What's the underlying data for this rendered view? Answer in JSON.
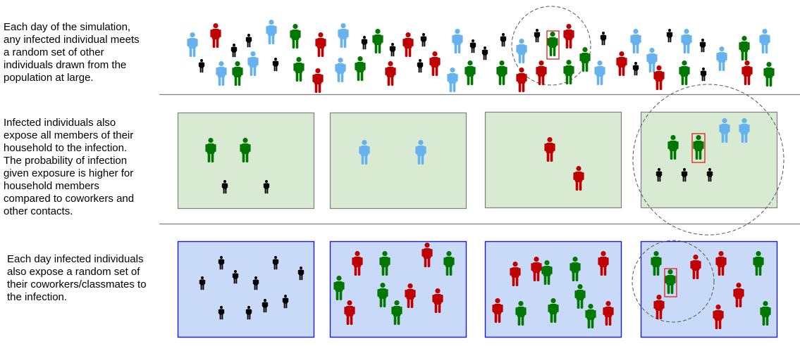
{
  "colors": {
    "infected": "#c00000",
    "recovered": "#007800",
    "susceptible": "#66b2ee",
    "child": "#000000",
    "household_fill": "#d9ead3",
    "household_border": "#7f7f7f",
    "work_fill": "#c9daf8",
    "work_border": "#1a1adc",
    "highlight": "#e01b1b",
    "ring": "#555555",
    "divider": "#7f7f7f"
  },
  "captions": {
    "community": "Each day of the simulation,\nany infected individual meets\na random set of other\nindividuals drawn from the\npopulation at large.",
    "household": "Infected individuals also\nexpose all members of their\nhousehold to the infection.\nThe probability of infection\ngiven exposure is higher for\nhousehold members\ncompared to coworkers and\nother contacts.",
    "workplace": "Each day infected individuals\nalso expose a random set of\ntheir coworkers/classmates to\nthe infection."
  },
  "community": {
    "people": [
      {
        "type": "susceptible"
      },
      {
        "type": "infected"
      },
      {
        "type": "child"
      },
      {
        "type": "child"
      },
      {
        "type": "susceptible"
      },
      {
        "type": "recovered"
      },
      {
        "type": "infected"
      },
      {
        "type": "susceptible"
      },
      {
        "type": "child"
      },
      {
        "type": "recovered"
      },
      {
        "type": "child"
      },
      {
        "type": "infected"
      },
      {
        "type": "child"
      },
      {
        "type": "susceptible"
      },
      {
        "type": "child"
      },
      {
        "type": "child"
      },
      {
        "type": "child"
      },
      {
        "type": "recovered"
      },
      {
        "type": "infected"
      },
      {
        "type": "recovered"
      },
      {
        "type": "child"
      },
      {
        "type": "susceptible"
      },
      {
        "type": "susceptible"
      },
      {
        "type": "child"
      },
      {
        "type": "susceptible"
      },
      {
        "type": "child"
      },
      {
        "type": "susceptible"
      },
      {
        "type": "recovered"
      },
      {
        "type": "susceptible"
      },
      {
        "type": "child"
      },
      {
        "type": "susceptible"
      },
      {
        "type": "recovered"
      },
      {
        "type": "susceptible"
      },
      {
        "type": "child"
      },
      {
        "type": "recovered"
      },
      {
        "type": "infected"
      },
      {
        "type": "susceptible"
      },
      {
        "type": "recovered"
      },
      {
        "type": "infected"
      },
      {
        "type": "child"
      },
      {
        "type": "infected"
      },
      {
        "type": "susceptible"
      },
      {
        "type": "recovered"
      },
      {
        "type": "child"
      },
      {
        "type": "recovered"
      },
      {
        "type": "susceptible"
      },
      {
        "type": "infected"
      },
      {
        "type": "infected"
      },
      {
        "type": "recovered"
      },
      {
        "type": "susceptible"
      },
      {
        "type": "infected"
      },
      {
        "type": "child"
      },
      {
        "type": "infected"
      },
      {
        "type": "recovered"
      }
    ]
  },
  "households": [
    {
      "people": [
        {
          "type": "recovered"
        },
        {
          "type": "recovered"
        },
        {
          "type": "child"
        },
        {
          "type": "child"
        }
      ]
    },
    {
      "people": [
        {
          "type": "susceptible"
        },
        {
          "type": "susceptible"
        }
      ]
    },
    {
      "people": [
        {
          "type": "infected"
        },
        {
          "type": "infected"
        }
      ]
    },
    {
      "people": [
        {
          "type": "susceptible"
        },
        {
          "type": "susceptible"
        },
        {
          "type": "recovered"
        },
        {
          "type": "recovered"
        },
        {
          "type": "child"
        },
        {
          "type": "child"
        },
        {
          "type": "child"
        }
      ]
    }
  ],
  "workplaces": [
    {
      "people": [
        {
          "type": "child"
        },
        {
          "type": "child"
        },
        {
          "type": "child"
        },
        {
          "type": "child"
        },
        {
          "type": "child"
        },
        {
          "type": "child"
        },
        {
          "type": "child"
        },
        {
          "type": "child"
        },
        {
          "type": "child"
        },
        {
          "type": "child"
        }
      ]
    },
    {
      "people": [
        {
          "type": "infected"
        },
        {
          "type": "recovered"
        },
        {
          "type": "infected"
        },
        {
          "type": "recovered"
        },
        {
          "type": "recovered"
        },
        {
          "type": "recovered"
        },
        {
          "type": "infected"
        },
        {
          "type": "infected"
        },
        {
          "type": "infected"
        },
        {
          "type": "recovered"
        }
      ]
    },
    {
      "people": [
        {
          "type": "infected"
        },
        {
          "type": "infected"
        },
        {
          "type": "recovered"
        },
        {
          "type": "infected"
        },
        {
          "type": "recovered"
        },
        {
          "type": "recovered"
        },
        {
          "type": "infected"
        },
        {
          "type": "recovered"
        },
        {
          "type": "recovered"
        },
        {
          "type": "recovered"
        },
        {
          "type": "infected"
        }
      ]
    },
    {
      "people": [
        {
          "type": "recovered"
        },
        {
          "type": "infected"
        },
        {
          "type": "infected"
        },
        {
          "type": "recovered"
        },
        {
          "type": "recovered"
        },
        {
          "type": "infected"
        },
        {
          "type": "infected"
        },
        {
          "type": "infected"
        },
        {
          "type": "recovered"
        }
      ]
    }
  ]
}
